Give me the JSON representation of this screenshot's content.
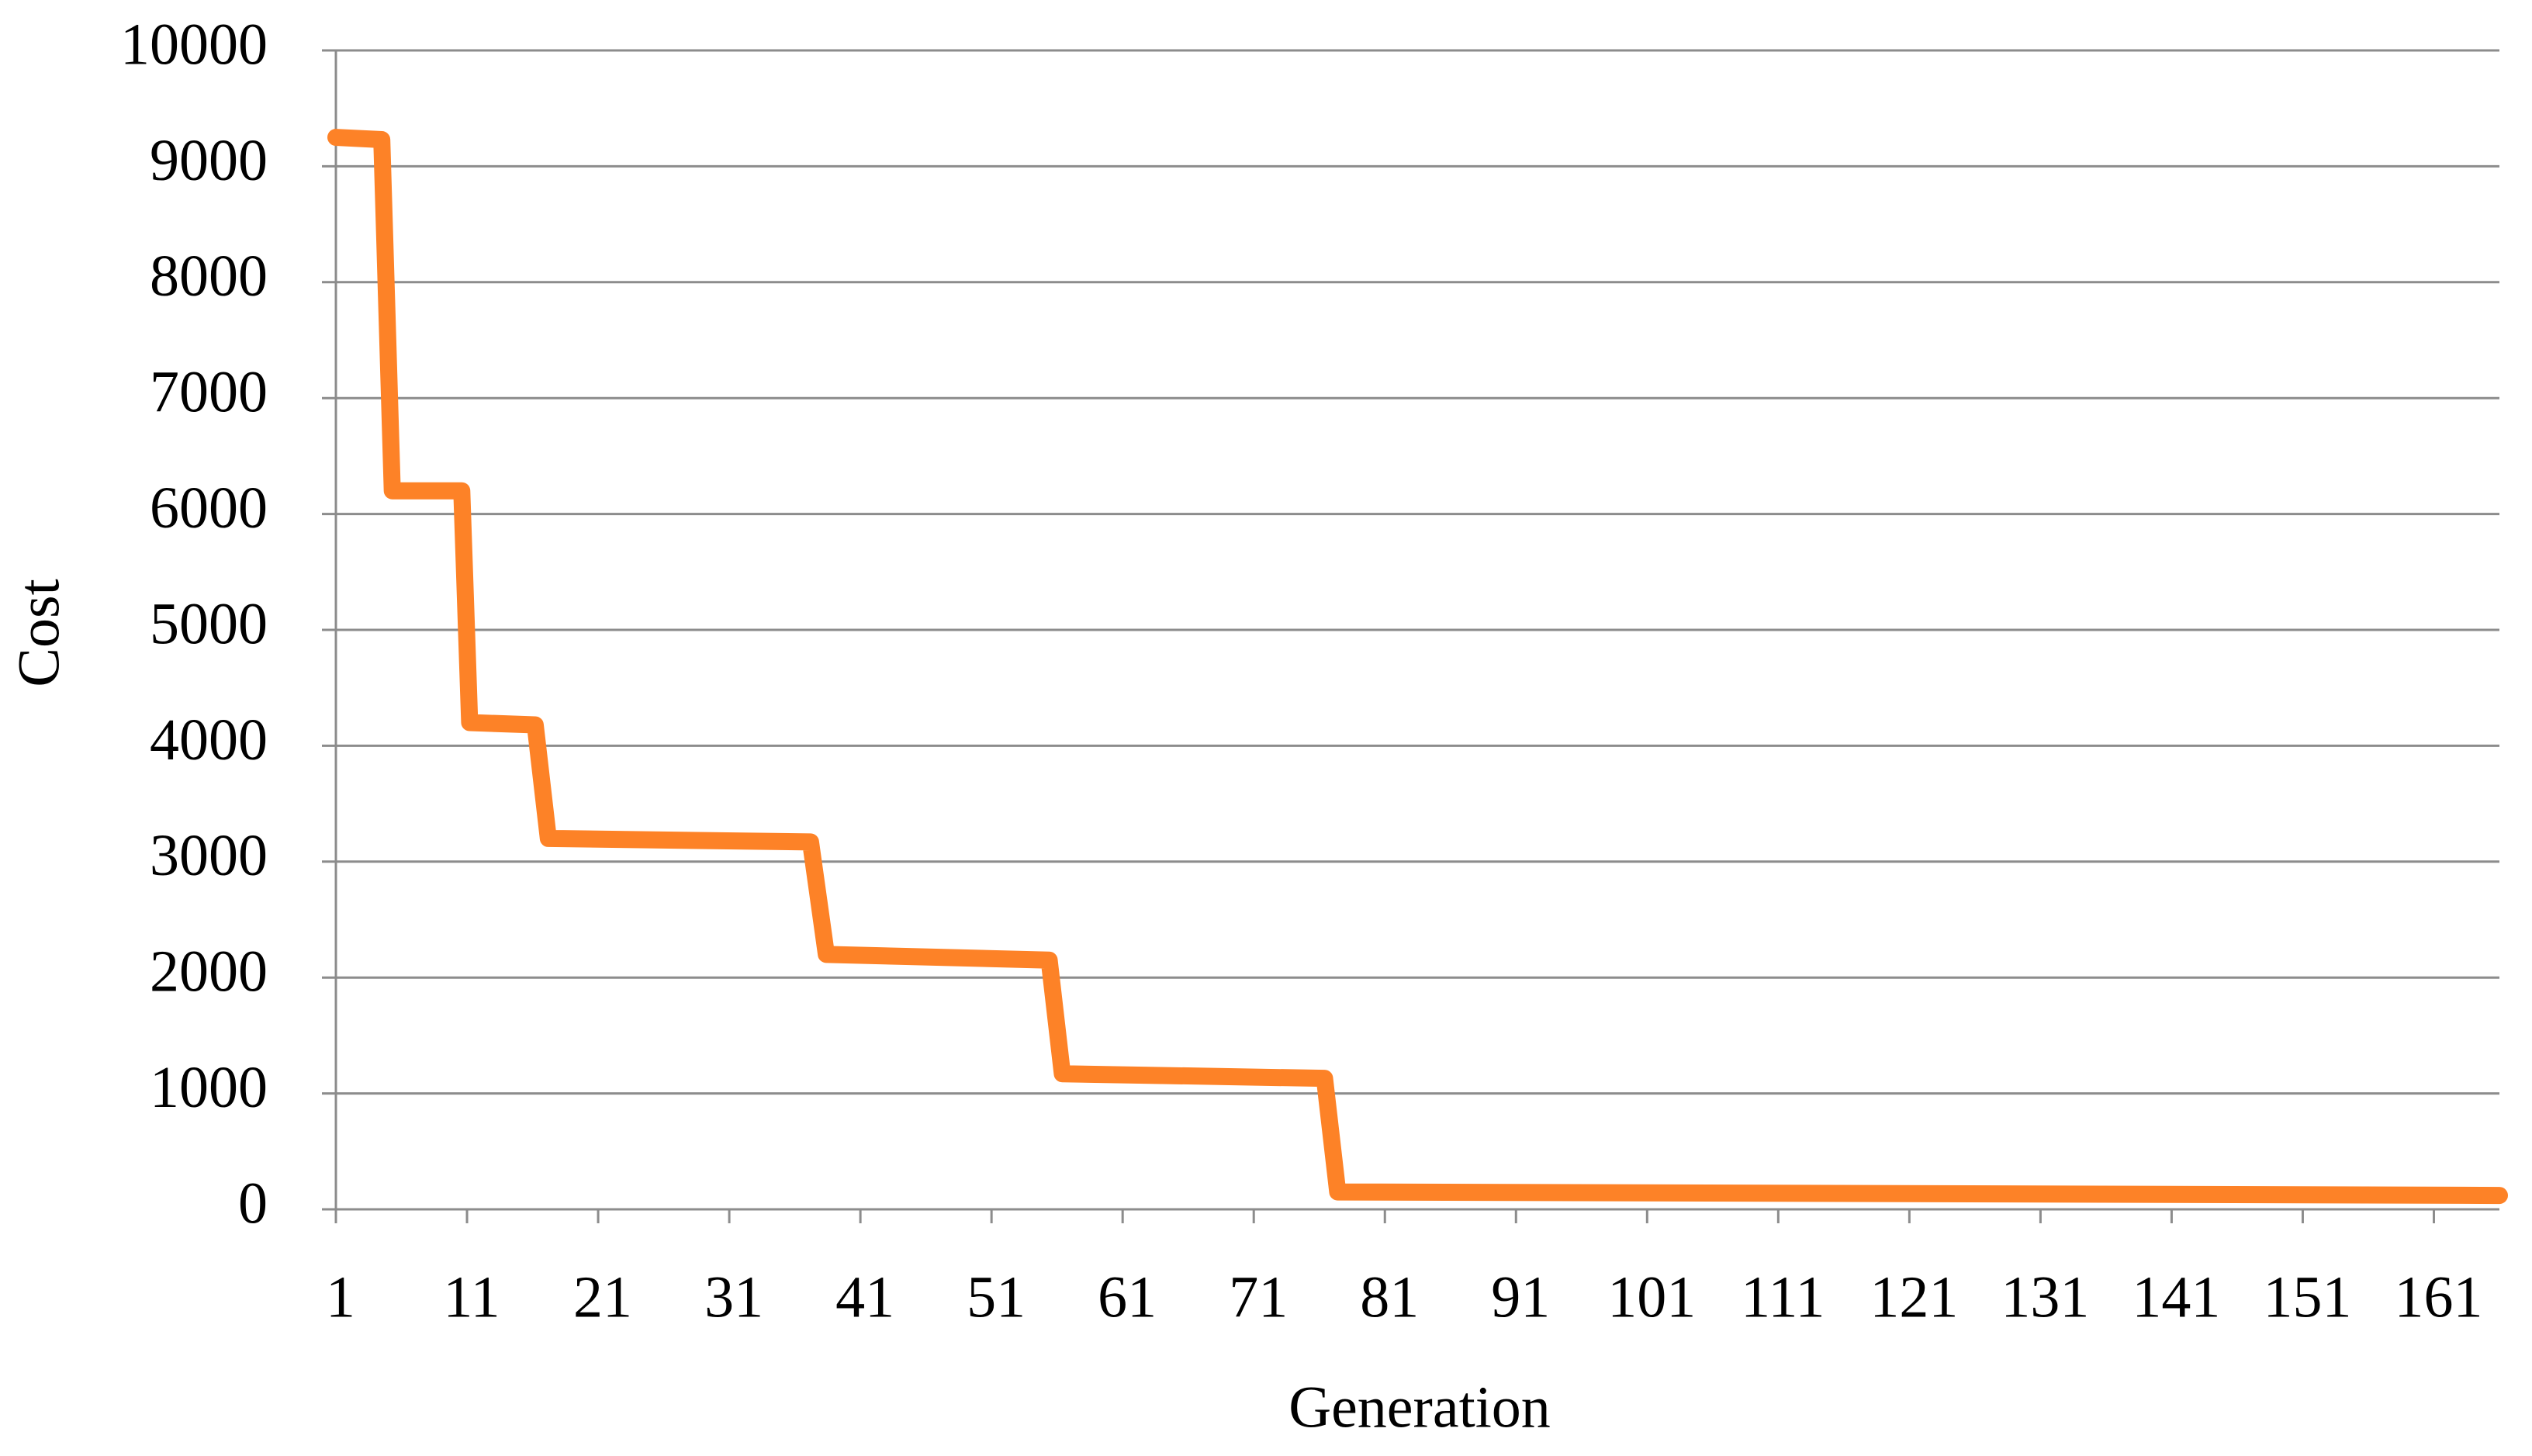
{
  "chart_data": {
    "type": "line",
    "x_label": "Generation",
    "y_label": "Cost",
    "x": [
      1,
      4.5,
      5.3,
      10.6,
      11.2,
      16.2,
      17.2,
      37.2,
      38.4,
      55.4,
      56.4,
      76.4,
      77.4,
      166
    ],
    "series": [
      {
        "name": "Cost",
        "color": "#fd8227",
        "values": [
          9250,
          9230,
          6200,
          6200,
          4200,
          4180,
          3200,
          3170,
          2200,
          2150,
          1170,
          1130,
          150,
          120
        ]
      }
    ],
    "xlim": [
      1,
      166
    ],
    "xticks": [
      1,
      11,
      21,
      31,
      41,
      51,
      61,
      71,
      81,
      91,
      101,
      111,
      121,
      131,
      141,
      151,
      161
    ],
    "ylim": [
      0,
      10000
    ],
    "yticks": [
      0,
      1000,
      2000,
      3000,
      4000,
      5000,
      6000,
      7000,
      8000,
      9000,
      10000
    ],
    "grid": true
  }
}
